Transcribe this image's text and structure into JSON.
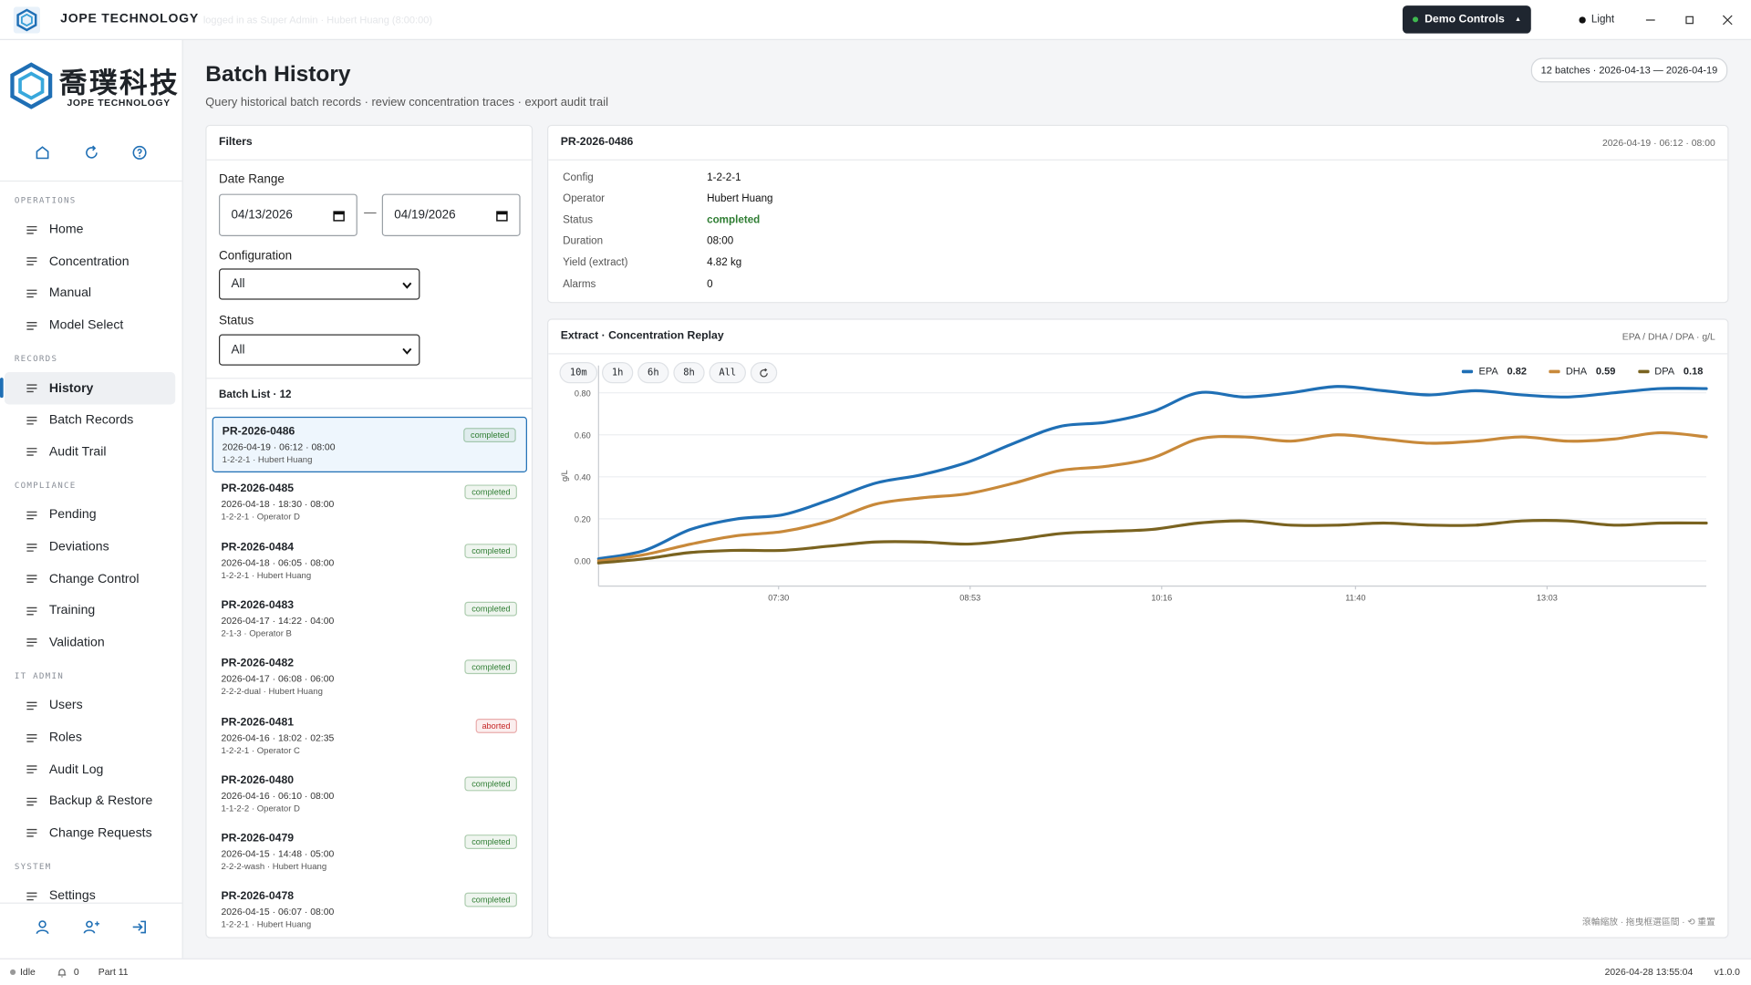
{
  "titlebar": {
    "brand": "JOPE TECHNOLOGY",
    "login_text": "logged in as Super Admin · Hubert Huang (8:00:00)",
    "demo_controls": "Demo Controls",
    "theme": "Light"
  },
  "logo": {
    "cn": "喬璞科技",
    "en": "JOPE TECHNOLOGY"
  },
  "nav": {
    "sections": [
      {
        "title": "OPERATIONS",
        "items": [
          {
            "label": "Home"
          },
          {
            "label": "Concentration"
          },
          {
            "label": "Manual"
          },
          {
            "label": "Model Select"
          }
        ]
      },
      {
        "title": "RECORDS",
        "items": [
          {
            "label": "History",
            "active": true
          },
          {
            "label": "Batch Records"
          },
          {
            "label": "Audit Trail"
          }
        ]
      },
      {
        "title": "COMPLIANCE",
        "items": [
          {
            "label": "Pending"
          },
          {
            "label": "Deviations"
          },
          {
            "label": "Change Control"
          },
          {
            "label": "Training"
          },
          {
            "label": "Validation"
          }
        ]
      },
      {
        "title": "IT ADMIN",
        "items": [
          {
            "label": "Users"
          },
          {
            "label": "Roles"
          },
          {
            "label": "Audit Log"
          },
          {
            "label": "Backup & Restore"
          },
          {
            "label": "Change Requests"
          }
        ]
      },
      {
        "title": "SYSTEM",
        "items": [
          {
            "label": "Settings"
          }
        ]
      }
    ]
  },
  "header": {
    "title": "Batch History",
    "subtitle": "Query historical batch records · review concentration traces · export audit trail",
    "summary": "12 batches · 2026-04-13 — 2026-04-19"
  },
  "filters": {
    "title": "Filters",
    "date_label": "Date Range",
    "date_from": "04/13/2026",
    "date_separator": "—",
    "date_to": "04/19/2026",
    "config_label": "Configuration",
    "config_value": "All",
    "status_label": "Status",
    "status_value": "All"
  },
  "batch_list": {
    "title": "Batch List · 12",
    "items": [
      {
        "id": "PR-2026-0486",
        "time": "2026-04-19 · 06:12 · 08:00",
        "meta": "1-2-2-1 · Hubert Huang",
        "status": "completed",
        "status_color": "#2e7d32",
        "selected": true
      },
      {
        "id": "PR-2026-0485",
        "time": "2026-04-18 · 18:30 · 08:00",
        "meta": "1-2-2-1 · Operator D",
        "status": "completed",
        "status_color": "#2e7d32"
      },
      {
        "id": "PR-2026-0484",
        "time": "2026-04-18 · 06:05 · 08:00",
        "meta": "1-2-2-1 · Hubert Huang",
        "status": "completed",
        "status_color": "#2e7d32"
      },
      {
        "id": "PR-2026-0483",
        "time": "2026-04-17 · 14:22 · 04:00",
        "meta": "2-1-3 · Operator B",
        "status": "completed",
        "status_color": "#2e7d32"
      },
      {
        "id": "PR-2026-0482",
        "time": "2026-04-17 · 06:08 · 06:00",
        "meta": "2-2-2-dual · Hubert Huang",
        "status": "completed",
        "status_color": "#2e7d32"
      },
      {
        "id": "PR-2026-0481",
        "time": "2026-04-16 · 18:02 · 02:35",
        "meta": "1-2-2-1 · Operator C",
        "status": "aborted",
        "status_color": "#c62828"
      },
      {
        "id": "PR-2026-0480",
        "time": "2026-04-16 · 06:10 · 08:00",
        "meta": "1-1-2-2 · Operator D",
        "status": "completed",
        "status_color": "#2e7d32"
      },
      {
        "id": "PR-2026-0479",
        "time": "2026-04-15 · 14:48 · 05:00",
        "meta": "2-2-2-wash · Hubert Huang",
        "status": "completed",
        "status_color": "#2e7d32"
      },
      {
        "id": "PR-2026-0478",
        "time": "2026-04-15 · 06:07 · 08:00",
        "meta": "1-2-2-1 · Hubert Huang",
        "status": "completed",
        "status_color": "#2e7d32"
      }
    ]
  },
  "detail": {
    "id": "PR-2026-0486",
    "time": "2026-04-19 · 06:12 · 08:00",
    "fields": {
      "config": {
        "label": "Config",
        "value": "1-2-2-1"
      },
      "operator": {
        "label": "Operator",
        "value": "Hubert Huang"
      },
      "status": {
        "label": "Status",
        "value": "completed",
        "color": "#2e7d32"
      },
      "duration": {
        "label": "Duration",
        "value": "08:00"
      },
      "yield": {
        "label": "Yield (extract)",
        "value": "4.82 kg"
      },
      "alarms": {
        "label": "Alarms",
        "value": 0
      }
    }
  },
  "chart_panel": {
    "title": "Extract · Concentration Replay",
    "units": "EPA / DHA / DPA · g/L",
    "ranges": [
      "10m",
      "1h",
      "6h",
      "8h",
      "All"
    ],
    "hint": "滾輪縮放 · 拖曳框選區間 · ⟲ 重置"
  },
  "chart_data": {
    "type": "line",
    "ylabel": "g/L",
    "x": [
      372,
      392,
      412,
      432,
      452,
      472,
      492,
      512,
      532,
      552,
      572,
      592,
      612,
      632,
      652,
      672,
      692,
      712,
      732,
      752,
      772,
      792,
      812,
      832,
      852
    ],
    "xlim": [
      372,
      852
    ],
    "xticks": [
      {
        "value": 450,
        "label": "07:30"
      },
      {
        "value": 533,
        "label": "08:53"
      },
      {
        "value": 616,
        "label": "10:16"
      },
      {
        "value": 700,
        "label": "11:40"
      },
      {
        "value": 783,
        "label": "13:03"
      }
    ],
    "ylim": [
      -0.12,
      0.93
    ],
    "yticks": [
      {
        "value": 0,
        "label": "0.00"
      },
      {
        "value": 0.2,
        "label": "0.20"
      },
      {
        "value": 0.4,
        "label": "0.40"
      },
      {
        "value": 0.6,
        "label": "0.60"
      },
      {
        "value": 0.8,
        "label": "0.80"
      }
    ],
    "grid": true,
    "series": [
      {
        "name": "EPA",
        "color": "#1f6fb5",
        "values": [
          0.01,
          0.05,
          0.15,
          0.2,
          0.22,
          0.29,
          0.37,
          0.41,
          0.47,
          0.56,
          0.64,
          0.66,
          0.71,
          0.8,
          0.78,
          0.8,
          0.83,
          0.81,
          0.79,
          0.81,
          0.79,
          0.78,
          0.8,
          0.82,
          0.82
        ]
      },
      {
        "name": "DHA",
        "color": "#c8893a",
        "values": [
          0.0,
          0.03,
          0.08,
          0.12,
          0.14,
          0.19,
          0.27,
          0.3,
          0.32,
          0.37,
          0.43,
          0.45,
          0.49,
          0.58,
          0.59,
          0.57,
          0.6,
          0.58,
          0.56,
          0.57,
          0.59,
          0.57,
          0.58,
          0.61,
          0.59
        ]
      },
      {
        "name": "DPA",
        "color": "#7a6320",
        "values": [
          -0.01,
          0.01,
          0.04,
          0.05,
          0.05,
          0.07,
          0.09,
          0.09,
          0.08,
          0.1,
          0.13,
          0.14,
          0.15,
          0.18,
          0.19,
          0.17,
          0.17,
          0.18,
          0.17,
          0.17,
          0.19,
          0.19,
          0.17,
          0.18,
          0.18
        ]
      }
    ]
  },
  "statusbar": {
    "state": "Idle",
    "alerts": 0,
    "part": "Part 11",
    "datetime": "2026-04-28 13:55:04",
    "version": "v1.0.0"
  }
}
